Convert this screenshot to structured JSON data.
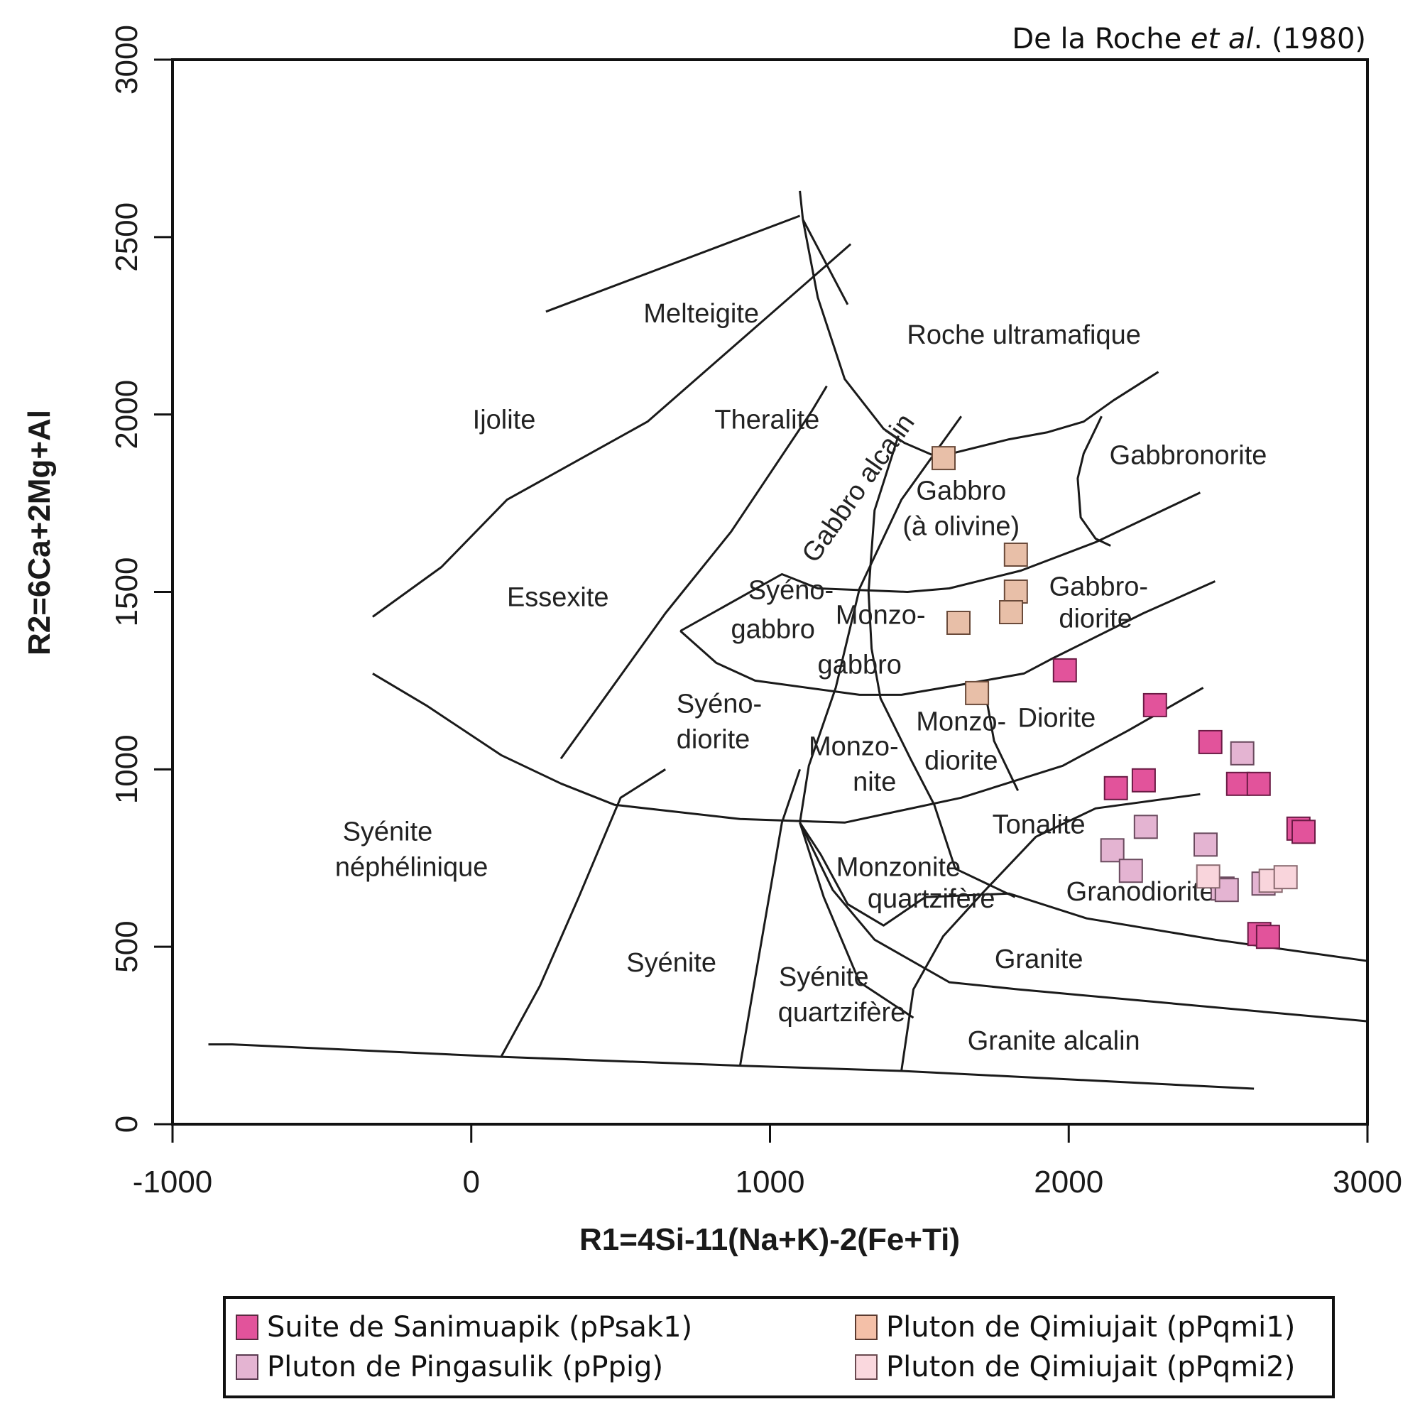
{
  "chart_data": {
    "type": "scatter",
    "title": "",
    "citation": {
      "prefix": "De la Roche ",
      "italic": "et al",
      "suffix": ". (1980)"
    },
    "xlabel": "R1=4Si-11(Na+K)-2(Fe+Ti)",
    "ylabel": "R2=6Ca+2Mg+Al",
    "xlim": [
      -1000,
      3000
    ],
    "ylim": [
      0,
      3000
    ],
    "xticks": [
      -1000,
      0,
      1000,
      2000,
      3000
    ],
    "yticks": [
      0,
      500,
      1000,
      1500,
      2000,
      2500,
      3000
    ],
    "grid": false,
    "legend_position": "bottom",
    "marker": "square",
    "series": [
      {
        "name": "Suite de Sanimuapik (pPsak1)",
        "color": "#e2539b",
        "points": [
          [
            1987,
            1279
          ],
          [
            2289,
            1181
          ],
          [
            2474,
            1077
          ],
          [
            2158,
            947
          ],
          [
            2251,
            969
          ],
          [
            2567,
            959
          ],
          [
            2636,
            959
          ],
          [
            2769,
            833
          ],
          [
            2786,
            824
          ],
          [
            2638,
            536
          ],
          [
            2667,
            528
          ]
        ]
      },
      {
        "name": "Pluton de Qimiujait (pPqmi1)",
        "color": "#e8bfa8",
        "points": [
          [
            1581,
            1877
          ],
          [
            1823,
            1605
          ],
          [
            1823,
            1501
          ],
          [
            1807,
            1443
          ],
          [
            1631,
            1413
          ],
          [
            1693,
            1215
          ]
        ]
      },
      {
        "name": "Pluton de Pingasulik (pPpig)",
        "color": "#e4b4d2",
        "points": [
          [
            2581,
            1045
          ],
          [
            2258,
            838
          ],
          [
            2146,
            772
          ],
          [
            2208,
            714
          ],
          [
            2458,
            788
          ],
          [
            2515,
            664
          ],
          [
            2529,
            660
          ],
          [
            2652,
            678
          ]
        ]
      },
      {
        "name": "Pluton de Qimiujait (pPqmi2)",
        "color": "#f9d5dc",
        "points": [
          [
            2467,
            698
          ],
          [
            2676,
            686
          ],
          [
            2726,
            696
          ]
        ]
      }
    ],
    "field_labels": [
      {
        "text": "Melteigite",
        "x": 770,
        "y": 2280
      },
      {
        "text": "Roche ultramafique",
        "x": 1850,
        "y": 2220
      },
      {
        "text": "Ijolite",
        "x": 110,
        "y": 1980
      },
      {
        "text": "Theralite",
        "x": 990,
        "y": 1980
      },
      {
        "text": "Gabbronorite",
        "x": 2400,
        "y": 1880
      },
      {
        "text": "Gabbro",
        "x": 1640,
        "y": 1780
      },
      {
        "text": "(à olivine)",
        "x": 1640,
        "y": 1680
      },
      {
        "text": "Gabbro alcalin",
        "x": 1300,
        "y": 1790,
        "rotate": -55
      },
      {
        "text": "Essexite",
        "x": 290,
        "y": 1480
      },
      {
        "text": "Syéno-",
        "x": 1070,
        "y": 1500
      },
      {
        "text": "gabbro",
        "x": 1010,
        "y": 1390
      },
      {
        "text": "Monzo-",
        "x": 1370,
        "y": 1430
      },
      {
        "text": "gabbro",
        "x": 1300,
        "y": 1290
      },
      {
        "text": "Gabbro-",
        "x": 2100,
        "y": 1510
      },
      {
        "text": "diorite",
        "x": 2090,
        "y": 1420
      },
      {
        "text": "Syéno-",
        "x": 830,
        "y": 1180
      },
      {
        "text": "diorite",
        "x": 810,
        "y": 1080
      },
      {
        "text": "Monzo-",
        "x": 1640,
        "y": 1130
      },
      {
        "text": "diorite",
        "x": 1640,
        "y": 1020
      },
      {
        "text": "Diorite",
        "x": 1960,
        "y": 1140
      },
      {
        "text": "Monzo-",
        "x": 1280,
        "y": 1060
      },
      {
        "text": "nite",
        "x": 1350,
        "y": 960
      },
      {
        "text": "Tonalite",
        "x": 1900,
        "y": 840
      },
      {
        "text": "Syénite",
        "x": -280,
        "y": 820
      },
      {
        "text": "néphélinique",
        "x": -200,
        "y": 720
      },
      {
        "text": "Monzonite",
        "x": 1430,
        "y": 720
      },
      {
        "text": "quartzifère",
        "x": 1540,
        "y": 630
      },
      {
        "text": "Granodiorite",
        "x": 2240,
        "y": 650
      },
      {
        "text": "Granite",
        "x": 1900,
        "y": 460
      },
      {
        "text": "Syénite",
        "x": 670,
        "y": 450
      },
      {
        "text": "Syénite",
        "x": 1180,
        "y": 410
      },
      {
        "text": "quartzifère",
        "x": 1240,
        "y": 310
      },
      {
        "text": "Granite alcalin",
        "x": 1950,
        "y": 230
      }
    ],
    "boundaries": [
      [
        [
          -880,
          225
        ],
        [
          -800,
          225
        ],
        [
          100,
          190
        ],
        [
          900,
          165
        ],
        [
          1440,
          150
        ],
        [
          2620,
          100
        ]
      ],
      [
        [
          100,
          190
        ],
        [
          230,
          390
        ],
        [
          360,
          640
        ],
        [
          500,
          920
        ],
        [
          650,
          1000
        ]
      ],
      [
        [
          900,
          165
        ],
        [
          960,
          460
        ],
        [
          1040,
          850
        ],
        [
          1100,
          1000
        ]
      ],
      [
        [
          1440,
          150
        ],
        [
          1480,
          380
        ],
        [
          1580,
          530
        ],
        [
          1710,
          650
        ],
        [
          1890,
          810
        ],
        [
          2090,
          890
        ],
        [
          2440,
          930
        ]
      ],
      [
        [
          -330,
          1270
        ],
        [
          -150,
          1180
        ],
        [
          100,
          1040
        ],
        [
          300,
          960
        ],
        [
          480,
          900
        ],
        [
          900,
          860
        ],
        [
          1250,
          850
        ],
        [
          1640,
          920
        ],
        [
          1980,
          1010
        ],
        [
          2200,
          1110
        ],
        [
          2450,
          1230
        ]
      ],
      [
        [
          300,
          1030
        ],
        [
          650,
          1440
        ],
        [
          870,
          1670
        ],
        [
          1140,
          2010
        ],
        [
          1190,
          2080
        ]
      ],
      [
        [
          -330,
          1430
        ],
        [
          -100,
          1570
        ],
        [
          120,
          1760
        ],
        [
          590,
          1980
        ],
        [
          1270,
          2480
        ]
      ],
      [
        [
          250,
          2290
        ],
        [
          1100,
          2560
        ]
      ],
      [
        [
          1100,
          2630
        ],
        [
          1110,
          2550
        ],
        [
          1160,
          2330
        ],
        [
          1250,
          2100
        ],
        [
          1380,
          1960
        ],
        [
          1450,
          1920
        ],
        [
          1560,
          1880
        ],
        [
          1800,
          1930
        ],
        [
          1930,
          1950
        ],
        [
          2050,
          1980
        ],
        [
          2150,
          2040
        ],
        [
          2300,
          2120
        ]
      ],
      [
        [
          1110,
          2550
        ],
        [
          1260,
          2310
        ]
      ],
      [
        [
          700,
          1390
        ],
        [
          820,
          1300
        ],
        [
          950,
          1250
        ],
        [
          1300,
          1210
        ],
        [
          1440,
          1210
        ],
        [
          1650,
          1240
        ],
        [
          1850,
          1270
        ],
        [
          1940,
          1310
        ],
        [
          2250,
          1440
        ],
        [
          2490,
          1530
        ]
      ],
      [
        [
          700,
          1390
        ],
        [
          1040,
          1550
        ],
        [
          1160,
          1510
        ],
        [
          1460,
          1500
        ],
        [
          1600,
          1510
        ],
        [
          1840,
          1560
        ],
        [
          2090,
          1640
        ],
        [
          2440,
          1780
        ]
      ],
      [
        [
          1640,
          1995
        ],
        [
          1440,
          1760
        ],
        [
          1300,
          1510
        ],
        [
          1220,
          1230
        ],
        [
          1130,
          1010
        ],
        [
          1100,
          850
        ]
      ],
      [
        [
          1100,
          850
        ],
        [
          1180,
          640
        ],
        [
          1300,
          400
        ],
        [
          1480,
          300
        ]
      ],
      [
        [
          1100,
          850
        ],
        [
          1210,
          660
        ],
        [
          1350,
          520
        ],
        [
          1600,
          400
        ],
        [
          1830,
          380
        ],
        [
          3000,
          290
        ]
      ],
      [
        [
          1100,
          850
        ],
        [
          1170,
          760
        ],
        [
          1260,
          620
        ],
        [
          1380,
          560
        ],
        [
          1520,
          640
        ],
        [
          1800,
          650
        ],
        [
          2060,
          580
        ],
        [
          2490,
          520
        ],
        [
          3000,
          460
        ]
      ],
      [
        [
          1720,
          1220
        ],
        [
          1750,
          1080
        ],
        [
          1830,
          940
        ]
      ],
      [
        [
          1430,
          1940
        ],
        [
          1350,
          1730
        ],
        [
          1330,
          1500
        ],
        [
          1340,
          1340
        ],
        [
          1370,
          1200
        ],
        [
          1470,
          1030
        ],
        [
          1550,
          900
        ],
        [
          1620,
          720
        ],
        [
          1820,
          640
        ]
      ],
      [
        [
          2110,
          1995
        ],
        [
          2050,
          1890
        ],
        [
          2030,
          1820
        ],
        [
          2040,
          1710
        ],
        [
          2090,
          1650
        ],
        [
          2140,
          1630
        ]
      ]
    ]
  },
  "legend": {
    "items": [
      {
        "label": "Suite de Sanimuapik (pPsak1)",
        "color": "#e2539b"
      },
      {
        "label": "Pluton de Qimiujait (pPqmi1)",
        "color": "#f4c0a8"
      },
      {
        "label": "Pluton de Pingasulik (pPpig)",
        "color": "#e4b4d2"
      },
      {
        "label": "Pluton de Qimiujait (pPqmi2)",
        "color": "#fad8de"
      }
    ]
  }
}
